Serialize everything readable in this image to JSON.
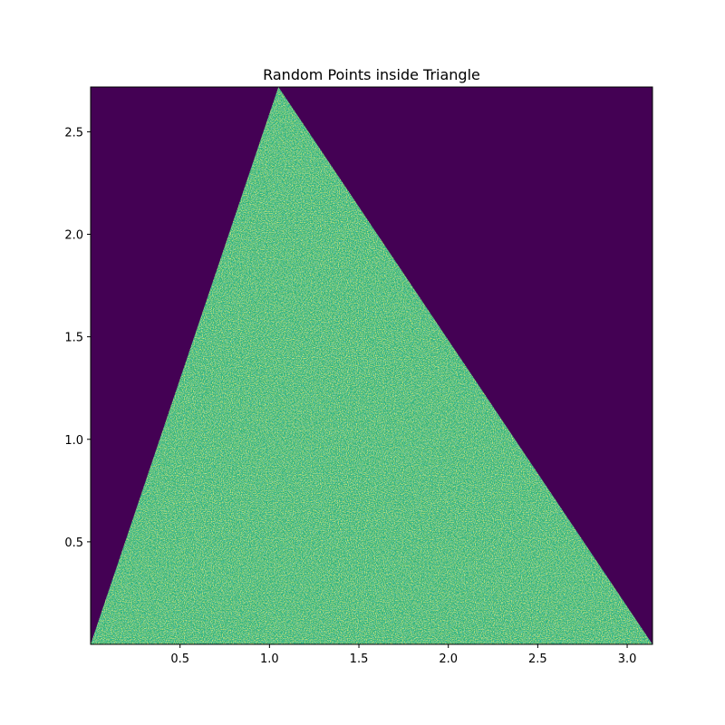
{
  "chart_data": {
    "type": "heatmap",
    "title": "Random Points inside Triangle",
    "xlabel": "",
    "ylabel": "",
    "xlim": [
      0.0,
      3.14159
    ],
    "ylim": [
      0.0,
      2.71828
    ],
    "xticks": [
      {
        "value": 0.5,
        "label": "0.5"
      },
      {
        "value": 1.0,
        "label": "1.0"
      },
      {
        "value": 1.5,
        "label": "1.5"
      },
      {
        "value": 2.0,
        "label": "2.0"
      },
      {
        "value": 2.5,
        "label": "2.5"
      },
      {
        "value": 3.0,
        "label": "3.0"
      }
    ],
    "yticks": [
      {
        "value": 0.5,
        "label": "0.5"
      },
      {
        "value": 1.0,
        "label": "1.0"
      },
      {
        "value": 1.5,
        "label": "1.5"
      },
      {
        "value": 2.0,
        "label": "2.0"
      },
      {
        "value": 2.5,
        "label": "2.5"
      }
    ],
    "triangle_vertices": [
      [
        0.0,
        0.0
      ],
      [
        3.14159,
        0.0
      ],
      [
        1.05,
        2.71828
      ]
    ],
    "grid": false,
    "legend": "none",
    "colors": {
      "background": "#440154",
      "fill_base": "#2fb47c",
      "fill_light": "#b5de2b",
      "fill_dark": "#21918c"
    }
  }
}
